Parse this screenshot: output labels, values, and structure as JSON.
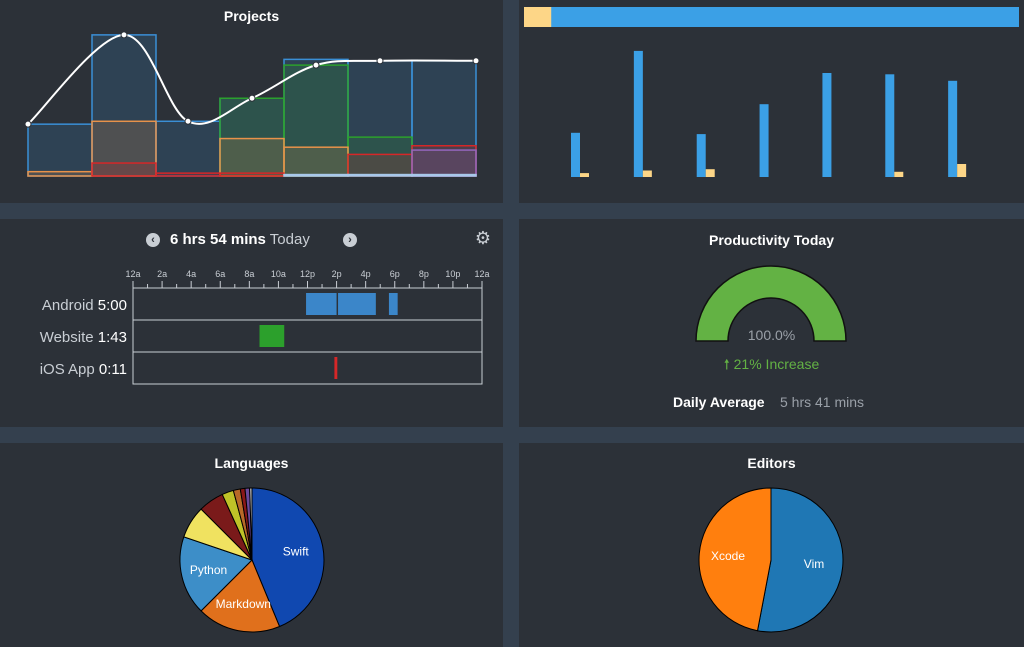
{
  "projects": {
    "title": "Projects",
    "chart_data": {
      "type": "area",
      "x": [
        1,
        2,
        3,
        4,
        5,
        6,
        7
      ],
      "xlim": [
        0.5,
        7.5
      ],
      "ylim": [
        0,
        10
      ],
      "grid": false,
      "series": [
        {
          "color": "#3a8fd6",
          "values": [
            3.6,
            9.8,
            3.8,
            5.4,
            8.1,
            8.0,
            8.0
          ]
        },
        {
          "color": "#2ca02c",
          "values": [
            0,
            0,
            0,
            5.4,
            7.7,
            2.7,
            0
          ]
        },
        {
          "color": "#e8924a",
          "values": [
            0.3,
            3.8,
            0,
            2.6,
            2.0,
            0,
            0
          ]
        },
        {
          "color": "#d62728",
          "values": [
            0,
            0.9,
            0.2,
            0.2,
            0,
            1.5,
            2.1
          ]
        },
        {
          "color": "#9467bd",
          "values": [
            0,
            0,
            0,
            0,
            0,
            0,
            1.8
          ]
        },
        {
          "color": "#a8c8ea",
          "values": [
            0,
            0,
            0,
            0,
            0.1,
            0.1,
            0.1
          ]
        }
      ],
      "total_line": {
        "color": "#ffffff",
        "values": [
          3.6,
          9.8,
          3.8,
          5.4,
          7.7,
          8.0,
          8.0
        ]
      }
    }
  },
  "activity": {
    "chart_data": {
      "type": "bar",
      "categories": [
        "1",
        "2",
        "3",
        "4",
        "5",
        "6",
        "7"
      ],
      "ylim": [
        0,
        10
      ],
      "grid": false,
      "series": [
        {
          "color": "#3ba0e6",
          "values": [
            3.4,
            9.7,
            3.3,
            5.6,
            8.0,
            7.9,
            7.4
          ]
        },
        {
          "color": "#fdd687",
          "values": [
            0.3,
            0.5,
            0.6,
            0,
            0,
            0.4,
            1.0
          ]
        }
      ]
    },
    "progress": {
      "fraction": 0.055,
      "fill_color": "#fdd687",
      "rest_color": "#3ba0e6"
    }
  },
  "timeline": {
    "prev_icon": "chevron-left-icon",
    "next_icon": "chevron-right-icon",
    "settings_icon": "gear-icon",
    "total": "6 hrs 54 mins",
    "day": "Today",
    "hours": [
      "12a",
      "2a",
      "4a",
      "6a",
      "8a",
      "10a",
      "12p",
      "2p",
      "4p",
      "6p",
      "8p",
      "10p",
      "12a"
    ],
    "rows": [
      {
        "name": "Android",
        "duration": "5:00",
        "color": "#3b86c9",
        "spans": [
          [
            11.9,
            14.0
          ],
          [
            14.1,
            16.7
          ],
          [
            17.6,
            18.2
          ]
        ]
      },
      {
        "name": "Website",
        "duration": "1:43",
        "color": "#2ca02c",
        "spans": [
          [
            8.7,
            10.4
          ]
        ]
      },
      {
        "name": "iOS App",
        "duration": "0:11",
        "color": "#d62728",
        "spans": [
          [
            13.85,
            14.05
          ]
        ]
      }
    ]
  },
  "productivity": {
    "title": "Productivity Today",
    "gauge_fraction": 1.0,
    "percent": "100.0%",
    "gauge_color": "#63b244",
    "change_icon": "arrow-up-icon",
    "change": "21% Increase",
    "change_color": "#63b244",
    "daily_avg_label": "Daily Average",
    "daily_avg_value": "5 hrs 41 mins"
  },
  "languages": {
    "title": "Languages",
    "chart_data": {
      "type": "pie",
      "slices": [
        {
          "label": "Swift",
          "value": 42.0,
          "color": "#1048b0"
        },
        {
          "label": "Markdown",
          "value": 18.0,
          "color": "#e0701c"
        },
        {
          "label": "Python",
          "value": 17.0,
          "color": "#3d8ec8"
        },
        {
          "label": "",
          "value": 7.0,
          "color": "#f0e260"
        },
        {
          "label": "",
          "value": 5.5,
          "color": "#7a1a1a"
        },
        {
          "label": "",
          "value": 2.5,
          "color": "#bfc228"
        },
        {
          "label": "",
          "value": 1.5,
          "color": "#b86a28"
        },
        {
          "label": "",
          "value": 1.0,
          "color": "#8a1818"
        },
        {
          "label": "",
          "value": 1.0,
          "color": "#6a4a9a"
        },
        {
          "label": "",
          "value": 0.5,
          "color": "#c8c8c8"
        }
      ]
    }
  },
  "editors": {
    "title": "Editors",
    "chart_data": {
      "type": "pie",
      "slices": [
        {
          "label": "Vim",
          "value": 53.0,
          "color": "#1f77b4"
        },
        {
          "label": "Xcode",
          "value": 47.0,
          "color": "#ff7f0e"
        }
      ]
    }
  }
}
